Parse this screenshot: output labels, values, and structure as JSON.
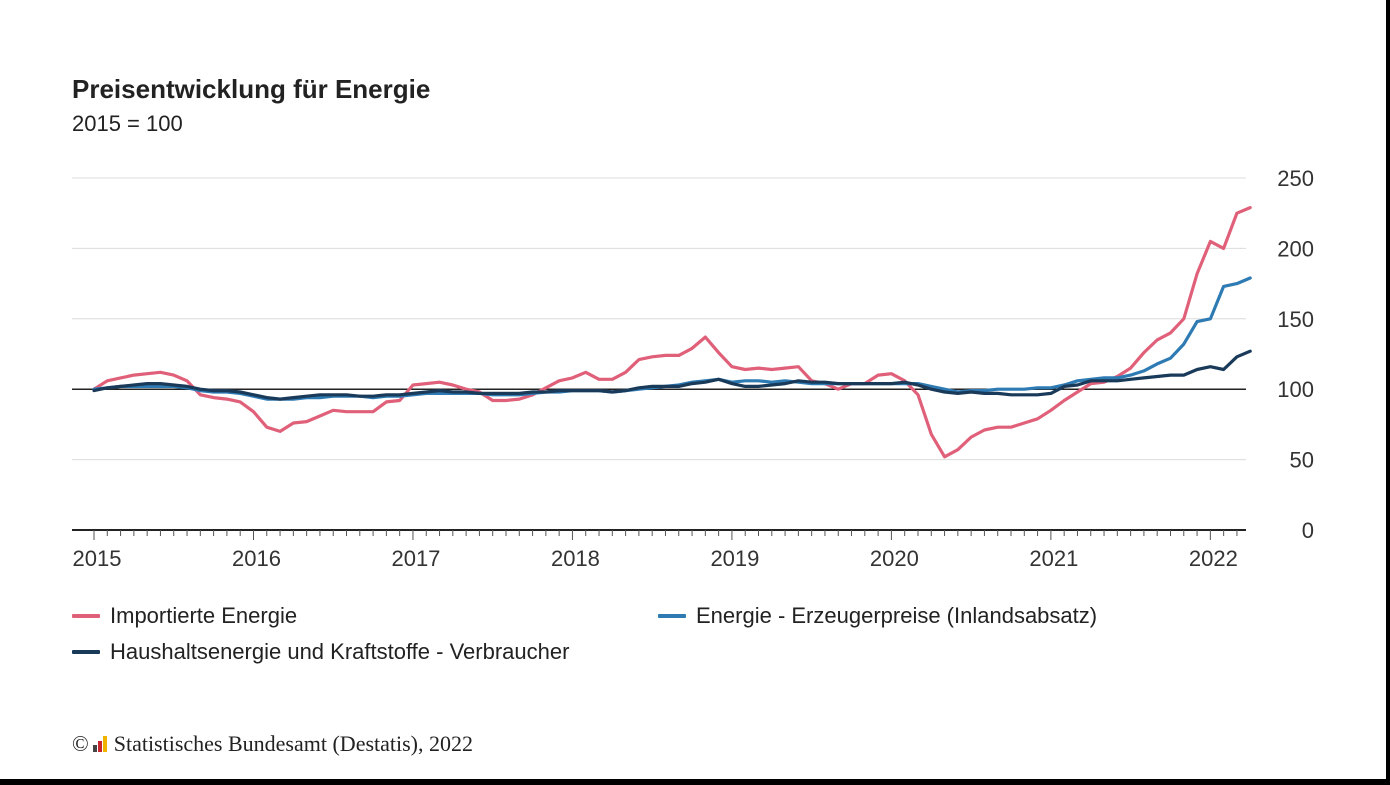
{
  "chart_data": {
    "type": "line",
    "title": "Preisentwicklung für Energie",
    "subtitle": "2015 = 100",
    "ylim": [
      0,
      250
    ],
    "yticks": [
      0,
      50,
      100,
      150,
      200,
      250
    ],
    "x_ticks": [
      "2015",
      "2016",
      "2017",
      "2018",
      "2019",
      "2020",
      "2021",
      "2022"
    ],
    "x_start": "2015-01",
    "grid": true,
    "legend_position": "bottom",
    "series": [
      {
        "name": "Importierte Energie",
        "color": "#e0607a",
        "values": [
          100,
          106,
          108,
          110,
          111,
          112,
          110,
          106,
          96,
          94,
          93,
          91,
          84,
          73,
          70,
          76,
          77,
          81,
          85,
          84,
          84,
          84,
          91,
          92,
          103,
          104,
          105,
          103,
          100,
          98,
          92,
          92,
          93,
          96,
          101,
          106,
          108,
          112,
          107,
          107,
          112,
          121,
          123,
          124,
          124,
          129,
          137,
          126,
          116,
          114,
          115,
          114,
          115,
          116,
          106,
          104,
          100,
          104,
          104,
          110,
          111,
          106,
          96,
          68,
          52,
          57,
          66,
          71,
          73,
          73,
          76,
          79,
          85,
          92,
          98,
          104,
          105,
          109,
          115,
          126,
          135,
          140,
          150,
          182,
          205,
          200,
          225,
          229
        ]
      },
      {
        "name": "Energie - Erzeugerpreise (Inlandsabsatz)",
        "color": "#2e7bb4",
        "values": [
          100,
          101,
          102,
          102,
          102,
          102,
          102,
          101,
          99,
          98,
          98,
          97,
          95,
          93,
          93,
          93,
          94,
          94,
          95,
          95,
          95,
          94,
          95,
          95,
          96,
          97,
          97,
          97,
          97,
          97,
          96,
          96,
          96,
          97,
          98,
          98,
          99,
          99,
          99,
          98,
          99,
          100,
          101,
          102,
          103,
          105,
          106,
          107,
          105,
          106,
          106,
          105,
          106,
          105,
          104,
          104,
          104,
          104,
          104,
          104,
          104,
          104,
          104,
          102,
          100,
          98,
          99,
          99,
          100,
          100,
          100,
          101,
          101,
          103,
          106,
          107,
          108,
          108,
          110,
          113,
          118,
          122,
          132,
          148,
          150,
          173,
          175,
          179
        ]
      },
      {
        "name": "Haushaltsenergie und Kraftstoffe - Verbraucher",
        "color": "#1a3a5a",
        "values": [
          99,
          101,
          102,
          103,
          104,
          104,
          103,
          102,
          100,
          99,
          99,
          98,
          96,
          94,
          93,
          94,
          95,
          96,
          96,
          96,
          95,
          95,
          96,
          96,
          97,
          98,
          99,
          98,
          98,
          97,
          97,
          97,
          97,
          98,
          98,
          99,
          99,
          99,
          99,
          98,
          99,
          101,
          102,
          102,
          102,
          104,
          105,
          107,
          104,
          102,
          102,
          103,
          104,
          106,
          105,
          105,
          104,
          104,
          104,
          104,
          104,
          105,
          103,
          100,
          98,
          97,
          98,
          97,
          97,
          96,
          96,
          96,
          97,
          102,
          103,
          106,
          106,
          106,
          107,
          108,
          109,
          110,
          110,
          114,
          116,
          114,
          123,
          127
        ]
      }
    ]
  },
  "footer": {
    "copyright": "©",
    "source": "Statistisches Bundesamt (Destatis), 2022"
  }
}
